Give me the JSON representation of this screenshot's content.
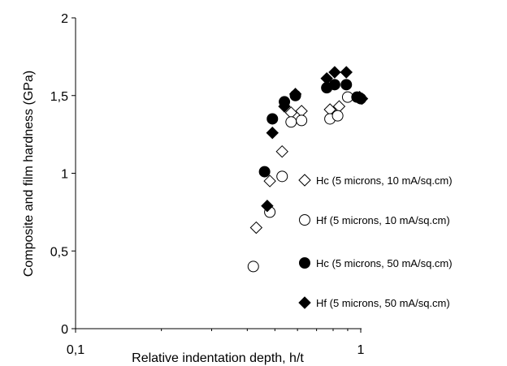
{
  "chart_data": {
    "type": "scatter",
    "title": "",
    "xlabel": "Relative indentation depth, h/t",
    "ylabel": "Composite and film hardness (GPa)",
    "x_scale": "log",
    "xlim": [
      0.1,
      1
    ],
    "ylim": [
      0,
      2
    ],
    "x_ticks": [
      0.1,
      1
    ],
    "x_tick_labels": [
      "0,1",
      "1"
    ],
    "y_ticks": [
      0,
      0.5,
      1,
      1.5,
      2
    ],
    "y_tick_labels": [
      "0",
      "0,5",
      "1",
      "1,5",
      "2"
    ],
    "grid": false,
    "legend_position": "right",
    "series": [
      {
        "name": "Hc (5 microns, 10 mA/sq.cm)",
        "marker": "diamond-open",
        "points": [
          [
            0.43,
            0.65
          ],
          [
            0.48,
            0.95
          ],
          [
            0.53,
            1.14
          ],
          [
            0.57,
            1.39
          ],
          [
            0.62,
            1.4
          ],
          [
            0.78,
            1.41
          ],
          [
            0.84,
            1.43
          ]
        ]
      },
      {
        "name": "Hf (5 microns, 10 mA/sq.cm)",
        "marker": "circle-open",
        "points": [
          [
            0.42,
            0.4
          ],
          [
            0.48,
            0.75
          ],
          [
            0.53,
            0.98
          ],
          [
            0.57,
            1.33
          ],
          [
            0.62,
            1.34
          ],
          [
            0.78,
            1.35
          ],
          [
            0.83,
            1.37
          ],
          [
            0.9,
            1.49
          ]
        ]
      },
      {
        "name": "Hc (5 microns, 50 mA/sq.cm)",
        "marker": "circle-filled",
        "points": [
          [
            0.46,
            1.01
          ],
          [
            0.49,
            1.35
          ],
          [
            0.54,
            1.46
          ],
          [
            0.59,
            1.5
          ],
          [
            0.76,
            1.55
          ],
          [
            0.81,
            1.57
          ],
          [
            0.89,
            1.57
          ],
          [
            0.97,
            1.49
          ],
          [
            1.0,
            1.48
          ]
        ]
      },
      {
        "name": "Hf (5 microns, 50 mA/sq.cm)",
        "marker": "diamond-filled",
        "points": [
          [
            0.47,
            0.79
          ],
          [
            0.49,
            1.26
          ],
          [
            0.54,
            1.43
          ],
          [
            0.59,
            1.51
          ],
          [
            0.76,
            1.61
          ],
          [
            0.81,
            1.65
          ],
          [
            0.89,
            1.65
          ],
          [
            0.99,
            1.49
          ],
          [
            1.01,
            1.48
          ]
        ]
      }
    ]
  }
}
